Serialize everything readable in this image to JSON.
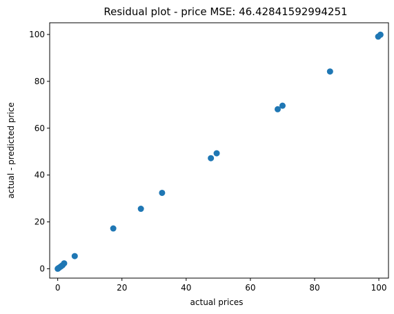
{
  "chart_data": {
    "type": "scatter",
    "title": "Residual plot - price MSE: 46.42841592994251",
    "xlabel": "actual prices",
    "ylabel": "actual - predicted price",
    "xlim": [
      -2.5,
      103
    ],
    "ylim": [
      -4,
      105
    ],
    "x_ticks": [
      0,
      20,
      40,
      60,
      80,
      100
    ],
    "y_ticks": [
      0,
      20,
      40,
      60,
      80,
      100
    ],
    "grid": false,
    "marker_color": "#1f77b4",
    "series": [
      {
        "x": [
          0,
          0.2,
          0.5,
          1,
          1.5,
          2,
          5.3,
          17.3,
          25.9,
          32.5,
          47.7,
          49.5,
          68.5,
          70,
          84.8,
          99.8,
          100.5
        ],
        "y": [
          0,
          0.2,
          0.5,
          1,
          1.5,
          2.3,
          5.4,
          17.2,
          25.6,
          32.4,
          47.2,
          49.3,
          68.1,
          69.6,
          84.2,
          99.1,
          99.9
        ]
      }
    ]
  }
}
